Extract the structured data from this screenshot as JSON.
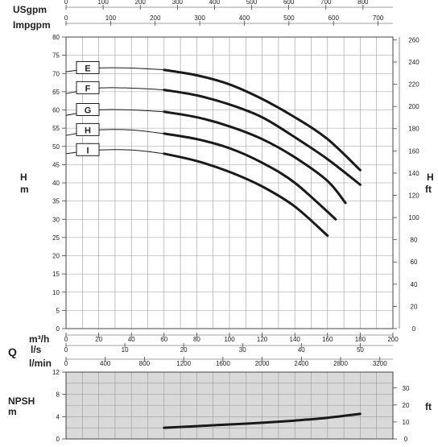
{
  "chart_data": [
    {
      "type": "line",
      "title": "",
      "top_axes": [
        {
          "label": "USgpm",
          "ticks": [
            "0",
            "100",
            "200",
            "300",
            "400",
            "500",
            "600",
            "700",
            "800"
          ]
        },
        {
          "label": "Impgpm",
          "ticks": [
            "0",
            "100",
            "200",
            "300",
            "400",
            "500",
            "600",
            "700"
          ]
        }
      ],
      "bottom_axes": [
        {
          "label": "m³/h",
          "ticks": [
            "0",
            "20",
            "40",
            "60",
            "80",
            "100",
            "120",
            "140",
            "160",
            "180",
            "200"
          ]
        },
        {
          "label": "l/s",
          "ticks": [
            "0",
            "10",
            "20",
            "30",
            "40",
            "50"
          ]
        },
        {
          "label": "l/min",
          "ticks": [
            "0",
            "400",
            "800",
            "1200",
            "1600",
            "2000",
            "2400",
            "2800",
            "3200"
          ]
        }
      ],
      "xlabel": "m³/h",
      "xlim": [
        0,
        200
      ],
      "ylabel_left": "H m",
      "ylim": [
        0,
        80
      ],
      "yticks_left": [
        "0",
        "5",
        "10",
        "15",
        "20",
        "25",
        "30",
        "35",
        "40",
        "45",
        "50",
        "55",
        "60",
        "65",
        "70",
        "75",
        "80"
      ],
      "ylabel_right": "H ft",
      "yticks_right": [
        "0",
        "20",
        "40",
        "60",
        "80",
        "100",
        "120",
        "140",
        "160",
        "180",
        "200",
        "220",
        "240",
        "260"
      ],
      "grid": true,
      "series": [
        {
          "name": "E",
          "x": [
            0,
            20,
            40,
            60,
            80,
            100,
            120,
            140,
            160,
            180
          ],
          "y": [
            70.5,
            71.5,
            71.5,
            71,
            69.5,
            67,
            63,
            58,
            52,
            43.5
          ]
        },
        {
          "name": "F",
          "x": [
            0,
            20,
            40,
            60,
            80,
            100,
            120,
            140,
            160,
            180
          ],
          "y": [
            64.5,
            66,
            66,
            65.5,
            64,
            61.5,
            58,
            52.5,
            46.5,
            39.5
          ]
        },
        {
          "name": "G",
          "x": [
            0,
            20,
            40,
            60,
            80,
            100,
            120,
            140,
            160,
            171
          ],
          "y": [
            58.5,
            60,
            60,
            59.5,
            58,
            55.5,
            52,
            47,
            40.5,
            34.5
          ]
        },
        {
          "name": "H",
          "x": [
            0,
            20,
            40,
            60,
            80,
            100,
            120,
            140,
            165
          ],
          "y": [
            53,
            54.5,
            54.5,
            53.5,
            52,
            49.5,
            45.5,
            40,
            30
          ]
        },
        {
          "name": "I",
          "x": [
            0,
            20,
            40,
            60,
            80,
            100,
            120,
            140,
            160
          ],
          "y": [
            48,
            49,
            49,
            48,
            46,
            43,
            39,
            33.5,
            25.5
          ]
        }
      ]
    },
    {
      "type": "line",
      "title": "",
      "ylabel_left": "NPSH m",
      "ylim": [
        0,
        12
      ],
      "yticks_left": [
        "0",
        "4",
        "8",
        "12"
      ],
      "ylabel_right": "ft",
      "yticks_right": [
        "0",
        "10",
        "20",
        "30"
      ],
      "xlim": [
        0,
        200
      ],
      "grid": true,
      "series": [
        {
          "name": "NPSH",
          "x": [
            60,
            80,
            100,
            120,
            140,
            160,
            180
          ],
          "y": [
            2.0,
            2.3,
            2.6,
            2.9,
            3.3,
            3.8,
            4.5
          ]
        }
      ]
    }
  ],
  "labels": {
    "usgpm": "USgpm",
    "impgpm": "Impgpm",
    "m3h": "m³/h",
    "ls": "l/s",
    "lmin": "l/min",
    "q": "Q",
    "h_left_1": "H",
    "h_left_2": "m",
    "h_right_1": "H",
    "h_right_2": "ft",
    "npsh_1": "NPSH",
    "npsh_2": "m",
    "npsh_ft": "ft"
  },
  "colors": {
    "curve": "#1a1a1a",
    "grid": "#9a9a9a",
    "npsh_bg": "#d9d9d9",
    "frame": "#444444"
  }
}
